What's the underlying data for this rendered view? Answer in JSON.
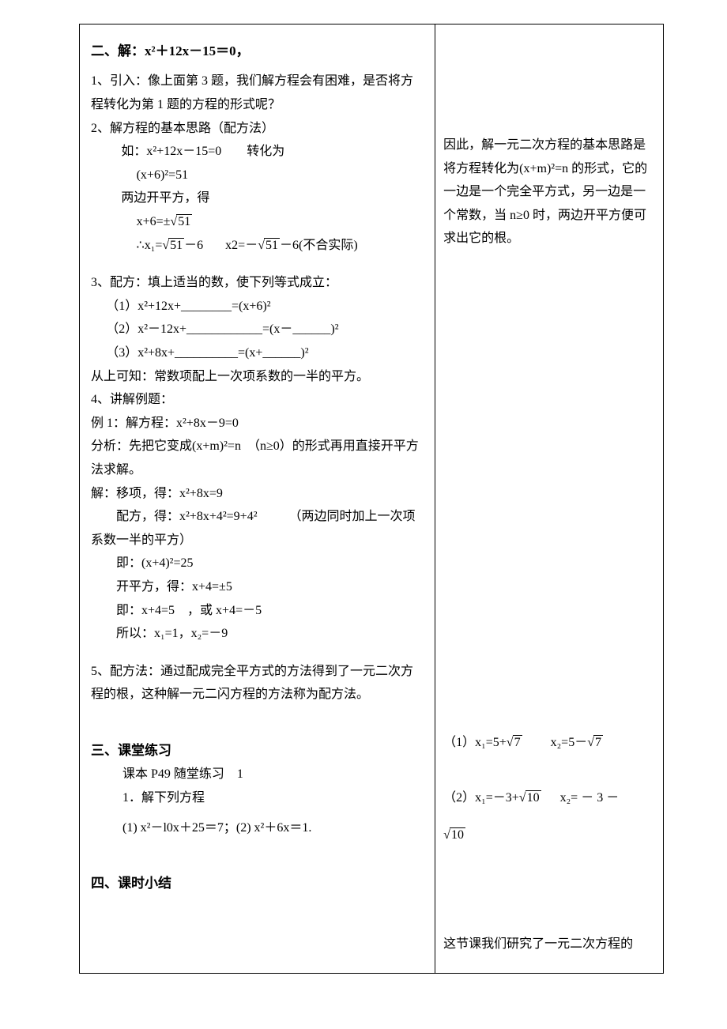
{
  "left": {
    "s2_title": "二、解：x²＋12x－15＝0，",
    "s2_p1": "1、引入：像上面第 3 题，我们解方程会有困难，是否将方程转化为第 1 题的方程的形式呢？",
    "s2_p2": "2、解方程的基本思路（配方法）",
    "s2_eq1": "如：x²+12x－15=0　　转化为",
    "s2_eq2": "(x+6)²=51",
    "s2_eq3": "两边开平方，得",
    "s2_eq4_pre": "x+6=±√",
    "s2_eq4_rad": "51",
    "s2_eq5_a": "∴x₁=√",
    "s2_eq5_a_rad": "51",
    "s2_eq5_a_tail": "－6",
    "s2_eq5_b": "x2=－√",
    "s2_eq5_b_rad": "51",
    "s2_eq5_b_tail": "－6(不合实际)",
    "s2_p3": "3、配方：填上适当的数，使下列等式成立：",
    "s2_f1": "（1）x²+12x+________=(x+6)²",
    "s2_f2": "（2）x²－12x+____________=(x－______)²",
    "s2_f3": "（3）x²+8x+__________=(x+______)²",
    "s2_p4": "从上可知：常数项配上一次项系数的一半的平方。",
    "s2_p5": "4、讲解例题：",
    "s2_ex_line1": "例 1：解方程：x²+8x－9=0",
    "s2_ex_line2": "分析：先把它变成(x+m)²=n　（n≥0）的形式再用直接开平方法求解。",
    "s2_ex_line3": "解：移项，得：x²+8x=9",
    "s2_ex_line4": "配方，得：x²+8x+4²=9+4²　　　（两边同时加上一次项系数一半的平方）",
    "s2_ex_line5": "即：(x+4)²=25",
    "s2_ex_line6": "开平方，得：x+4=±5",
    "s2_ex_line7": "即：x+4=5　，或 x+4=－5",
    "s2_ex_line8": "所以：x₁=1，x₂=－9",
    "s2_p6": "5、配方法：通过配成完全平方式的方法得到了一元二次方程的根，这种解一元二闪方程的方法称为配方法。",
    "s3_title": "三、课堂练习",
    "s3_p1": "课本 P49 随堂练习　1",
    "s3_p2": "1．解下列方程",
    "s3_p3": "(1) x²－l0x＋25＝7；(2) x²＋6x＝1.",
    "s4_title": "四、课时小结"
  },
  "right": {
    "r1": "因此，解一元二次方程的基本思路是将方程转化为(x+m)²=n 的形式，它的一边是一个完全平方式，另一边是一个常数，当 n≥0 时，两边开平方便可求出它的根。",
    "r2a_pre": "（1）x₁=5+√",
    "r2a_rad": "7",
    "r2a_pre2": "x₂=5－√",
    "r2a_rad2": "7",
    "r2b_pre": "（2）x₁=－3+√",
    "r2b_rad": "10",
    "r2b_mid": "x₂= － 3 －",
    "r2b_last_pre": "√",
    "r2b_last_rad": "10",
    "r3": "这节课我们研究了一元二次方程的"
  }
}
